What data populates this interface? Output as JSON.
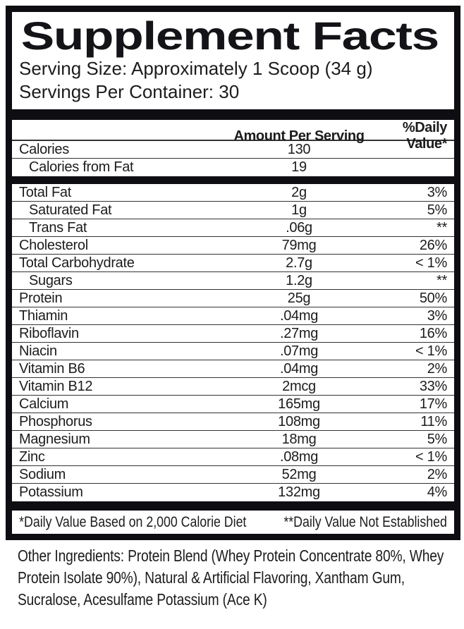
{
  "label": {
    "title": "Supplement Facts",
    "serving_size": "Serving Size: Approximately 1 Scoop (34 g)",
    "servings_per_container": "Servings Per Container: 30"
  },
  "table": {
    "header": {
      "amount": "Amount Per Serving",
      "daily_value": "%Daily Value*"
    },
    "calorie_rows": [
      {
        "label": "Calories",
        "amount": "130",
        "dv": "",
        "indent": false
      },
      {
        "label": "Calories from Fat",
        "amount": "19",
        "dv": "",
        "indent": true
      }
    ],
    "nutrient_rows": [
      {
        "label": "Total Fat",
        "amount": "2g",
        "dv": "3%",
        "indent": false
      },
      {
        "label": "Saturated Fat",
        "amount": "1g",
        "dv": "5%",
        "indent": true
      },
      {
        "label": "Trans Fat",
        "amount": ".06g",
        "dv": "**",
        "indent": true
      },
      {
        "label": "Cholesterol",
        "amount": "79mg",
        "dv": "26%",
        "indent": false
      },
      {
        "label": "Total Carbohydrate",
        "amount": "2.7g",
        "dv": "< 1%",
        "indent": false
      },
      {
        "label": "Sugars",
        "amount": "1.2g",
        "dv": "**",
        "indent": true
      },
      {
        "label": "Protein",
        "amount": "25g",
        "dv": "50%",
        "indent": false
      },
      {
        "label": "Thiamin",
        "amount": ".04mg",
        "dv": "3%",
        "indent": false
      },
      {
        "label": "Riboflavin",
        "amount": ".27mg",
        "dv": "16%",
        "indent": false
      },
      {
        "label": "Niacin",
        "amount": ".07mg",
        "dv": "< 1%",
        "indent": false
      },
      {
        "label": "Vitamin B6",
        "amount": ".04mg",
        "dv": "2%",
        "indent": false
      },
      {
        "label": "Vitamin B12",
        "amount": "2mcg",
        "dv": "33%",
        "indent": false
      },
      {
        "label": "Calcium",
        "amount": "165mg",
        "dv": "17%",
        "indent": false
      },
      {
        "label": "Phosphorus",
        "amount": "108mg",
        "dv": "11%",
        "indent": false
      },
      {
        "label": "Magnesium",
        "amount": "18mg",
        "dv": "5%",
        "indent": false
      },
      {
        "label": "Zinc",
        "amount": ".08mg",
        "dv": "< 1%",
        "indent": false
      },
      {
        "label": "Sodium",
        "amount": "52mg",
        "dv": "2%",
        "indent": false
      },
      {
        "label": "Potassium",
        "amount": "132mg",
        "dv": "4%",
        "indent": false
      }
    ]
  },
  "footnotes": {
    "daily_value_basis": "*Daily Value Based on 2,000 Calorie Diet",
    "not_established": "**Daily Value Not Established"
  },
  "other_ingredients": "Other Ingredients: Protein Blend (Whey Protein Concentrate 80%, Whey Protein Isolate 90%), Natural & Artificial Flavoring, Xantham Gum, Sucralose, Acesulfame Potassium (Ace K)",
  "colors": {
    "text": "#1c1c1c",
    "rule": "#333333",
    "bar": "#0e0e12",
    "background": "#ffffff"
  }
}
